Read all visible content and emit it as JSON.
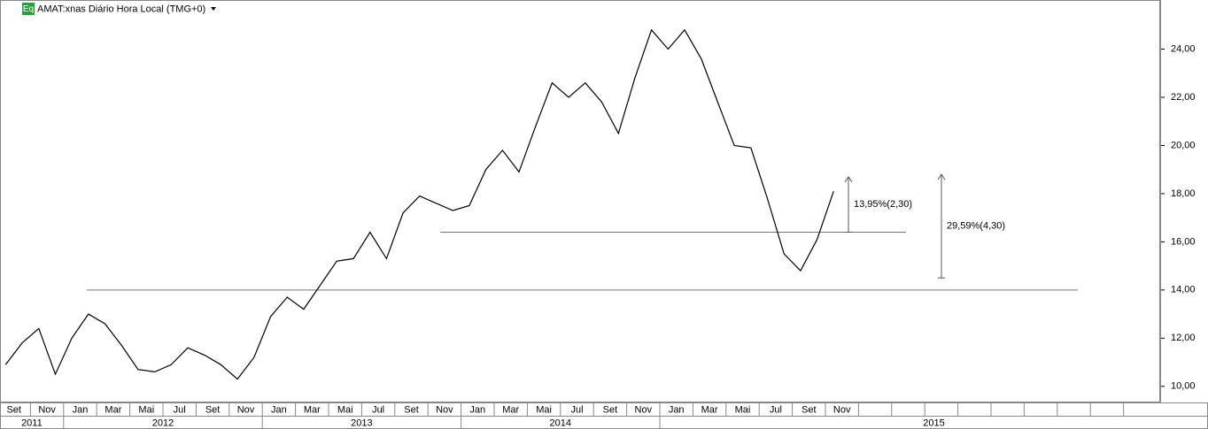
{
  "chart_data": {
    "type": "line",
    "badge": "Eq",
    "title": "AMAT:xnas Diário Hora Local (TMG+0)",
    "color": "#000000",
    "x": [
      "2011-09",
      "2011-10",
      "2011-11",
      "2011-12",
      "2012-01",
      "2012-02",
      "2012-03",
      "2012-04",
      "2012-05",
      "2012-06",
      "2012-07",
      "2012-08",
      "2012-09",
      "2012-10",
      "2012-11",
      "2012-12",
      "2013-01",
      "2013-02",
      "2013-03",
      "2013-04",
      "2013-05",
      "2013-06",
      "2013-07",
      "2013-08",
      "2013-09",
      "2013-10",
      "2013-11",
      "2013-12",
      "2014-01",
      "2014-02",
      "2014-03",
      "2014-04",
      "2014-05",
      "2014-06",
      "2014-07",
      "2014-08",
      "2014-09",
      "2014-10",
      "2014-11",
      "2014-12",
      "2015-01",
      "2015-02",
      "2015-03",
      "2015-04",
      "2015-05",
      "2015-06",
      "2015-07",
      "2015-08",
      "2015-09",
      "2015-10",
      "2015-11"
    ],
    "values": [
      10.9,
      11.8,
      12.4,
      10.5,
      12.0,
      13.0,
      12.6,
      11.7,
      10.7,
      10.6,
      10.9,
      11.6,
      11.3,
      10.9,
      10.3,
      11.2,
      12.9,
      13.7,
      13.2,
      14.2,
      15.2,
      15.3,
      16.4,
      15.3,
      17.2,
      17.9,
      17.6,
      17.3,
      17.5,
      19.0,
      19.8,
      18.9,
      20.8,
      22.6,
      22.0,
      22.6,
      21.8,
      20.5,
      22.8,
      24.8,
      24.0,
      24.8,
      23.6,
      21.8,
      20.0,
      19.9,
      17.8,
      15.5,
      14.8,
      16.1,
      18.1
    ],
    "ylim": [
      9.33,
      26.04
    ],
    "yticks": [
      {
        "value": 10,
        "label": "10,00"
      },
      {
        "value": 12,
        "label": "12,00"
      },
      {
        "value": 14,
        "label": "14,00"
      },
      {
        "value": 16,
        "label": "16,00"
      },
      {
        "value": 18,
        "label": "18,00"
      },
      {
        "value": 20,
        "label": "20,00"
      },
      {
        "value": 22,
        "label": "22,00"
      },
      {
        "value": 24,
        "label": "24,00"
      }
    ],
    "x_axis_months": [
      "Set",
      "Nov",
      "Jan",
      "Mar",
      "Mai",
      "Jul",
      "Set",
      "Nov",
      "Jan",
      "Mar",
      "Mai",
      "Jul",
      "Set",
      "Nov",
      "Jan",
      "Mar",
      "Mai",
      "Jul",
      "Set",
      "Nov",
      "Jan",
      "Mar",
      "Mai",
      "Jul",
      "Set",
      "Nov",
      null,
      null,
      null,
      null,
      null,
      null,
      null,
      null,
      null
    ],
    "x_axis_years": [
      "2011",
      "2012",
      "2013",
      "2014",
      "2015"
    ],
    "levels": [
      14.0,
      16.4
    ],
    "annotations": [
      {
        "text": "13,95%(2,30)",
        "from": 16.4,
        "to": 18.7
      },
      {
        "text": "29,59%(4,30)",
        "from": 14.5,
        "to": 18.8
      }
    ]
  }
}
